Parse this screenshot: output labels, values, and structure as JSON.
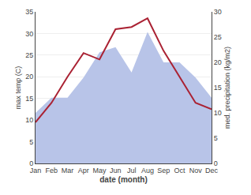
{
  "chart_data": {
    "type": "line",
    "categories": [
      "Jan",
      "Feb",
      "Mar",
      "Apr",
      "May",
      "Jun",
      "Jul",
      "Aug",
      "Sep",
      "Oct",
      "Nov",
      "Dec"
    ],
    "series": [
      {
        "type": "line",
        "color": "#aa2233",
        "values": [
          9.5,
          14.0,
          20.0,
          25.5,
          24.0,
          31.0,
          31.5,
          33.5,
          26.0,
          20.0,
          14.0,
          12.5
        ]
      },
      {
        "type": "area",
        "axis": "y2",
        "color": "#b8c4e8",
        "values": [
          10.0,
          13.0,
          13.0,
          17.0,
          22.0,
          23.0,
          18.0,
          26.0,
          20.0,
          20.0,
          17.0,
          13.0
        ]
      }
    ],
    "xlabel": "date (month)",
    "ylabel": "max temp (C)",
    "y2label": "med. precipitation (kg/m2)",
    "ylim": [
      0,
      35
    ],
    "yticks": [
      0,
      5,
      10,
      15,
      20,
      25,
      30,
      35
    ],
    "y2lim": [
      0,
      30
    ],
    "y2ticks": [
      0,
      5,
      10,
      15,
      20,
      25,
      30
    ],
    "grid": true
  }
}
